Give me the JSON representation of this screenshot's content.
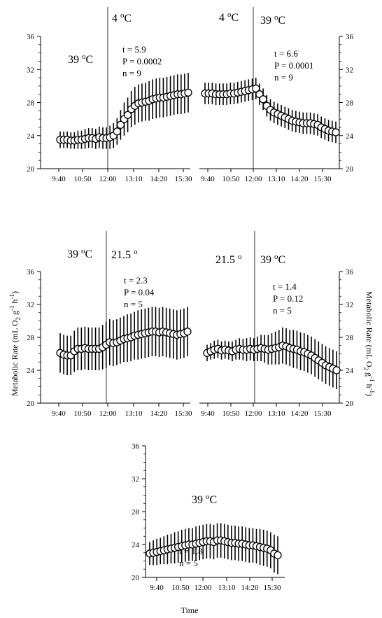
{
  "figure": {
    "ylabel": "Metabolic Rate (mL O2 g-1 h-1)",
    "xlabel": "Time"
  },
  "chart_data": [
    {
      "id": "top-left",
      "type": "line",
      "x_ticks": [
        "9:40",
        "10:50",
        "12:00",
        "13:10",
        "14:20",
        "15:30"
      ],
      "ylim": [
        20,
        36
      ],
      "yticks": [
        20,
        24,
        28,
        32,
        36
      ],
      "y_axis_side": "left",
      "divider": "12:00",
      "phase_labels": [
        "39 oC",
        "4 oC"
      ],
      "stats": [
        "t = 5.9",
        "P = 0.0002",
        "n = 9"
      ],
      "series": [
        {
          "y": [
            23.5,
            23.5,
            23.5,
            23.4,
            23.4,
            23.5,
            23.5,
            23.6,
            23.7,
            23.7,
            23.6,
            23.8,
            23.7,
            23.7,
            23.8,
            24.0,
            24.5,
            25.3,
            26.0,
            26.5,
            27.2,
            27.6,
            27.9,
            28.0,
            28.1,
            28.2,
            28.4,
            28.5,
            28.6,
            28.6,
            28.7,
            28.8,
            28.9,
            29.0,
            29.0,
            29.1,
            29.2
          ],
          "err": [
            1.0,
            1.0,
            1.0,
            1.0,
            1.0,
            1.1,
            1.1,
            1.2,
            1.2,
            1.2,
            1.2,
            1.3,
            1.3,
            1.3,
            1.4,
            1.5,
            1.6,
            1.8,
            2.0,
            2.1,
            2.2,
            2.3,
            2.3,
            2.3,
            2.3,
            2.4,
            2.4,
            2.4,
            2.4,
            2.4,
            2.4,
            2.4,
            2.4,
            2.4,
            2.4,
            2.4,
            2.4
          ]
        }
      ]
    },
    {
      "id": "top-right",
      "type": "line",
      "x_ticks": [
        "9:40",
        "10:50",
        "12:00",
        "13:10",
        "14:20",
        "15:30"
      ],
      "ylim": [
        20,
        36
      ],
      "yticks": [
        20,
        24,
        28,
        32,
        36
      ],
      "y_axis_side": "right",
      "divider": "12:00",
      "phase_labels": [
        "4 oC",
        "39 oC"
      ],
      "stats": [
        "t = 6.6",
        "P = 0.0001",
        "n = 9"
      ],
      "series": [
        {
          "y": [
            29.1,
            29.1,
            29.1,
            29.0,
            29.0,
            29.0,
            29.0,
            29.1,
            29.1,
            29.2,
            29.3,
            29.4,
            29.5,
            29.6,
            29.7,
            29.0,
            28.4,
            27.6,
            27.1,
            26.8,
            26.6,
            26.4,
            26.2,
            26.0,
            25.8,
            25.7,
            25.6,
            25.5,
            25.5,
            25.5,
            25.4,
            25.3,
            25.0,
            24.8,
            24.6,
            24.5,
            24.4
          ],
          "err": [
            1.3,
            1.3,
            1.3,
            1.3,
            1.3,
            1.3,
            1.3,
            1.3,
            1.3,
            1.3,
            1.3,
            1.3,
            1.3,
            1.3,
            1.3,
            1.3,
            1.3,
            1.3,
            1.3,
            1.3,
            1.3,
            1.3,
            1.3,
            1.3,
            1.3,
            1.3,
            1.3,
            1.3,
            1.3,
            1.3,
            1.3,
            1.3,
            1.3,
            1.3,
            1.3,
            1.3,
            1.3
          ]
        }
      ]
    },
    {
      "id": "middle-left",
      "type": "line",
      "x_ticks": [
        "9:40",
        "10:50",
        "12:00",
        "13:10",
        "14:20",
        "15:30"
      ],
      "ylim": [
        20,
        36
      ],
      "yticks": [
        20,
        24,
        28,
        32,
        36
      ],
      "y_axis_side": "left",
      "divider": "12:00",
      "phase_labels": [
        "39 oC",
        "21.5 o"
      ],
      "stats": [
        "t = 2.3",
        "P = 0.04",
        "n = 5"
      ],
      "series": [
        {
          "y": [
            26.1,
            25.9,
            25.8,
            25.8,
            26.3,
            26.6,
            26.6,
            26.7,
            26.6,
            26.6,
            26.6,
            26.6,
            26.8,
            27.1,
            27.4,
            27.3,
            27.4,
            27.6,
            27.8,
            27.9,
            28.0,
            28.2,
            28.3,
            28.4,
            28.5,
            28.6,
            28.7,
            28.7,
            28.6,
            28.7,
            28.6,
            28.5,
            28.4,
            28.3,
            28.4,
            28.5,
            28.7
          ],
          "err": [
            2.4,
            2.4,
            2.4,
            2.4,
            2.5,
            2.6,
            2.6,
            2.6,
            2.6,
            2.6,
            2.6,
            2.6,
            2.7,
            2.8,
            2.8,
            2.8,
            2.8,
            2.8,
            2.8,
            2.9,
            2.9,
            2.9,
            3.0,
            3.0,
            3.0,
            3.0,
            3.0,
            3.0,
            3.0,
            3.0,
            3.0,
            3.0,
            3.0,
            3.0,
            3.0,
            3.0,
            3.0
          ]
        }
      ]
    },
    {
      "id": "middle-right",
      "type": "line",
      "x_ticks": [
        "9:40",
        "10:50",
        "12:00",
        "13:10",
        "14:20",
        "15:30"
      ],
      "ylim": [
        20,
        36
      ],
      "yticks": [
        20,
        24,
        28,
        32,
        36
      ],
      "y_axis_side": "right",
      "divider": "12:00",
      "phase_labels": [
        "21.5 o",
        "39 oC"
      ],
      "stats": [
        "t = 1.4",
        "P = 0.12",
        "n = 5"
      ],
      "series": [
        {
          "y": [
            26.1,
            26.3,
            26.5,
            26.6,
            26.4,
            26.5,
            26.4,
            26.3,
            26.5,
            26.6,
            26.5,
            26.5,
            26.6,
            26.5,
            26.6,
            26.7,
            26.6,
            26.5,
            26.6,
            26.7,
            26.8,
            27.0,
            26.9,
            26.7,
            26.6,
            26.5,
            26.3,
            26.2,
            26.0,
            25.8,
            25.5,
            25.2,
            24.9,
            24.6,
            24.4,
            24.2,
            24.0
          ],
          "err": [
            1.0,
            1.0,
            1.1,
            1.1,
            1.1,
            1.1,
            1.1,
            1.2,
            1.2,
            1.3,
            1.3,
            1.4,
            1.4,
            1.4,
            1.5,
            1.6,
            1.7,
            1.8,
            1.9,
            2.0,
            2.1,
            2.2,
            2.2,
            2.2,
            2.3,
            2.3,
            2.3,
            2.3,
            2.3,
            2.3,
            2.3,
            2.3,
            2.3,
            2.3,
            2.3,
            2.3,
            2.3
          ]
        }
      ]
    },
    {
      "id": "bottom",
      "type": "line",
      "x_ticks": [
        "9:40",
        "10:50",
        "12:00",
        "13:10",
        "14:20",
        "15:30"
      ],
      "ylim": [
        20,
        36
      ],
      "yticks": [
        20,
        24,
        28,
        32,
        36
      ],
      "y_axis_side": "left",
      "divider": null,
      "phase_labels": [
        "39 oC"
      ],
      "stats": [
        "t = 1.8",
        "n = 5"
      ],
      "series": [
        {
          "y": [
            22.9,
            23.0,
            23.1,
            23.2,
            23.3,
            23.4,
            23.5,
            23.6,
            23.7,
            23.8,
            23.9,
            24.0,
            24.0,
            24.1,
            24.2,
            24.3,
            24.4,
            24.4,
            24.3,
            24.5,
            24.5,
            24.4,
            24.3,
            24.2,
            24.2,
            24.1,
            24.1,
            24.0,
            23.9,
            23.9,
            23.8,
            23.7,
            23.6,
            23.5,
            23.3,
            22.9,
            22.7
          ],
          "err": [
            1.4,
            1.5,
            1.6,
            1.6,
            1.7,
            1.8,
            1.8,
            1.9,
            1.9,
            2.0,
            2.0,
            2.0,
            2.0,
            2.1,
            2.1,
            2.1,
            2.1,
            2.1,
            2.1,
            2.1,
            2.1,
            2.1,
            2.1,
            2.1,
            2.1,
            2.1,
            2.1,
            2.1,
            2.1,
            2.1,
            2.1,
            2.2,
            2.2,
            2.2,
            2.2,
            2.3,
            2.3
          ]
        }
      ]
    }
  ]
}
